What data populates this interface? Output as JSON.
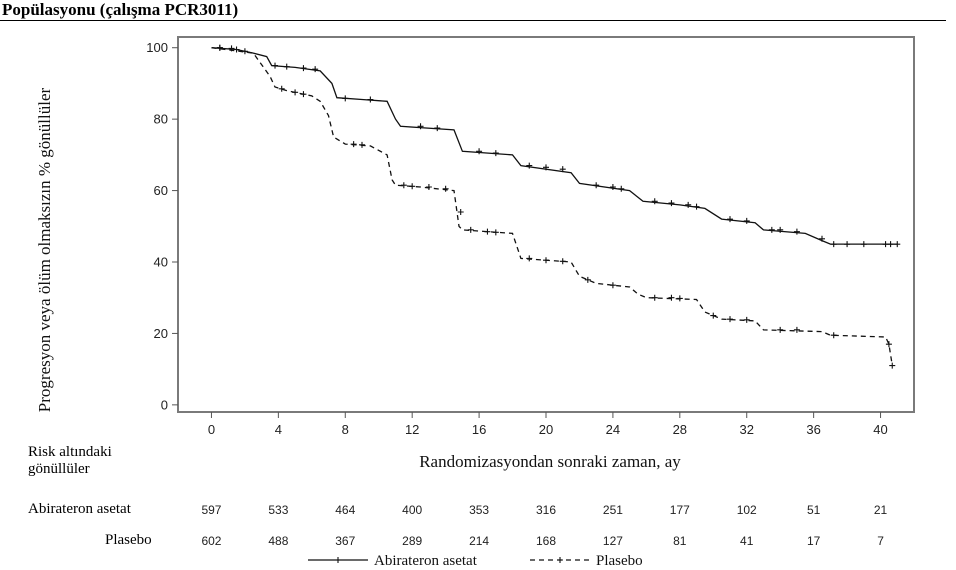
{
  "heading": "Popülasyonu (çalışma PCR3011)",
  "chart_data": {
    "type": "line",
    "title": "",
    "xlabel": "Randomizasyondan sonraki zaman, ay",
    "ylabel": "Progresyon veya ölüm olmaksızın % gönüllüler",
    "xlim": [
      -2,
      42
    ],
    "ylim": [
      -2,
      103
    ],
    "xticks": [
      0,
      4,
      8,
      12,
      16,
      20,
      24,
      28,
      32,
      36,
      40
    ],
    "yticks": [
      0,
      20,
      40,
      60,
      80,
      100
    ],
    "grid": false,
    "legend_position": "bottom",
    "series": [
      {
        "name": "Abirateron asetat",
        "style": "solid",
        "points": [
          [
            0,
            100
          ],
          [
            1.5,
            99.5
          ],
          [
            2.5,
            98.5
          ],
          [
            3.3,
            97.5
          ],
          [
            3.6,
            95
          ],
          [
            5,
            94.5
          ],
          [
            6.5,
            93.5
          ],
          [
            7.2,
            90
          ],
          [
            7.5,
            86
          ],
          [
            9,
            85.5
          ],
          [
            10.5,
            85
          ],
          [
            11,
            80
          ],
          [
            11.3,
            78
          ],
          [
            14.5,
            77
          ],
          [
            15,
            71
          ],
          [
            18,
            70
          ],
          [
            18.5,
            67
          ],
          [
            21.5,
            65
          ],
          [
            22,
            62
          ],
          [
            25,
            60
          ],
          [
            25.8,
            57
          ],
          [
            28,
            56
          ],
          [
            29.5,
            55
          ],
          [
            30.5,
            52
          ],
          [
            32.5,
            51
          ],
          [
            33,
            49
          ],
          [
            35.5,
            48
          ],
          [
            36.5,
            46
          ],
          [
            37,
            45
          ],
          [
            41,
            45
          ]
        ],
        "censor": [
          [
            0.5,
            100
          ],
          [
            1.2,
            99.8
          ],
          [
            2,
            99
          ],
          [
            3.8,
            95
          ],
          [
            4.5,
            94.7
          ],
          [
            5.5,
            94.3
          ],
          [
            6.2,
            94
          ],
          [
            8,
            85.8
          ],
          [
            9.5,
            85.5
          ],
          [
            12.5,
            78
          ],
          [
            13.5,
            77.5
          ],
          [
            16,
            71
          ],
          [
            17,
            70.5
          ],
          [
            19,
            67
          ],
          [
            20,
            66.5
          ],
          [
            21,
            66
          ],
          [
            23,
            61.5
          ],
          [
            24,
            61
          ],
          [
            24.5,
            60.5
          ],
          [
            26.5,
            57
          ],
          [
            27.5,
            56.5
          ],
          [
            28.5,
            56
          ],
          [
            29,
            55.5
          ],
          [
            31,
            52
          ],
          [
            32,
            51.5
          ],
          [
            33.5,
            49
          ],
          [
            34,
            49
          ],
          [
            35,
            48.5
          ],
          [
            36.5,
            46.5
          ],
          [
            37.2,
            45
          ],
          [
            38,
            45
          ],
          [
            39,
            45
          ],
          [
            40.3,
            45
          ],
          [
            40.6,
            45
          ],
          [
            41,
            45
          ]
        ]
      },
      {
        "name": "Plasebo",
        "style": "dashed",
        "points": [
          [
            0,
            100
          ],
          [
            2.5,
            98.5
          ],
          [
            3.5,
            92
          ],
          [
            3.8,
            89
          ],
          [
            4.5,
            88
          ],
          [
            6,
            86.5
          ],
          [
            6.5,
            85
          ],
          [
            7,
            81
          ],
          [
            7.3,
            75
          ],
          [
            8,
            73
          ],
          [
            9.5,
            72.5
          ],
          [
            10.5,
            70
          ],
          [
            10.8,
            63
          ],
          [
            11,
            61.5
          ],
          [
            12.5,
            61
          ],
          [
            14.5,
            60
          ],
          [
            14.8,
            50
          ],
          [
            15,
            49
          ],
          [
            18,
            48
          ],
          [
            18.5,
            41
          ],
          [
            21.5,
            40
          ],
          [
            22,
            36
          ],
          [
            23,
            34
          ],
          [
            25,
            33
          ],
          [
            25.5,
            31
          ],
          [
            26,
            30
          ],
          [
            29,
            29.5
          ],
          [
            29.5,
            26
          ],
          [
            30.5,
            24
          ],
          [
            32.5,
            23.5
          ],
          [
            33,
            21
          ],
          [
            36.5,
            20.5
          ],
          [
            37,
            19.5
          ],
          [
            40.3,
            19
          ],
          [
            40.5,
            17
          ],
          [
            40.7,
            11
          ]
        ],
        "censor": [
          [
            0.5,
            100
          ],
          [
            1.5,
            99.5
          ],
          [
            4.2,
            88.5
          ],
          [
            5,
            87.5
          ],
          [
            5.5,
            87
          ],
          [
            8.5,
            73
          ],
          [
            9,
            72.8
          ],
          [
            11.5,
            61.5
          ],
          [
            12,
            61.2
          ],
          [
            13,
            61
          ],
          [
            14,
            60.5
          ],
          [
            14.9,
            54
          ],
          [
            15.5,
            49
          ],
          [
            16.5,
            48.5
          ],
          [
            17,
            48.3
          ],
          [
            19,
            41
          ],
          [
            20,
            40.5
          ],
          [
            21,
            40.2
          ],
          [
            22.5,
            35
          ],
          [
            24,
            33.5
          ],
          [
            26.5,
            30
          ],
          [
            27.5,
            30
          ],
          [
            28,
            29.8
          ],
          [
            30,
            25
          ],
          [
            31,
            24
          ],
          [
            32,
            23.8
          ],
          [
            34,
            21
          ],
          [
            35,
            21
          ],
          [
            37.2,
            19.5
          ],
          [
            40.5,
            17
          ],
          [
            40.7,
            11
          ]
        ]
      }
    ],
    "risk_table": {
      "title": "Risk altındaki gönüllüler",
      "times": [
        0,
        4,
        8,
        12,
        16,
        20,
        24,
        28,
        32,
        36,
        40
      ],
      "rows": [
        {
          "label": "Abirateron asetat",
          "values": [
            "597",
            "533",
            "464",
            "400",
            "353",
            "316",
            "251",
            "177",
            "102",
            "51",
            "21"
          ]
        },
        {
          "label": "Plasebo",
          "values": [
            "602",
            "488",
            "367",
            "289",
            "214",
            "168",
            "127",
            "81",
            "41",
            "17",
            "7"
          ]
        }
      ]
    },
    "colors": {
      "frame": "#7a7a7a",
      "line": "#111111"
    }
  }
}
